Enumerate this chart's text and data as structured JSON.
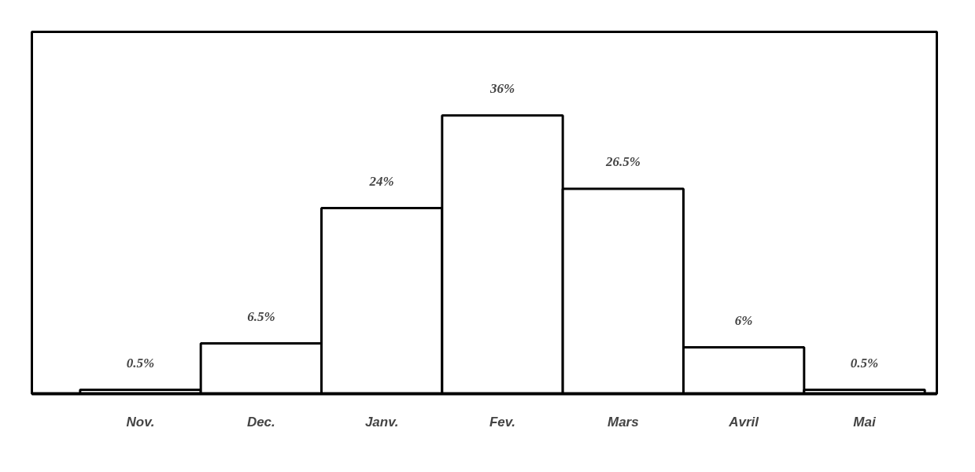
{
  "chart_data": {
    "type": "bar",
    "categories": [
      "Nov.",
      "Dec.",
      "Janv.",
      "Fev.",
      "Mars",
      "Avril",
      "Mai"
    ],
    "values": [
      0.5,
      6.5,
      24,
      36,
      26.5,
      6,
      0.5
    ],
    "value_labels": [
      "0.5%",
      "6.5%",
      "24%",
      "36%",
      "26.5%",
      "6%",
      "0.5%"
    ],
    "color": "#ffffff",
    "grid": false
  }
}
